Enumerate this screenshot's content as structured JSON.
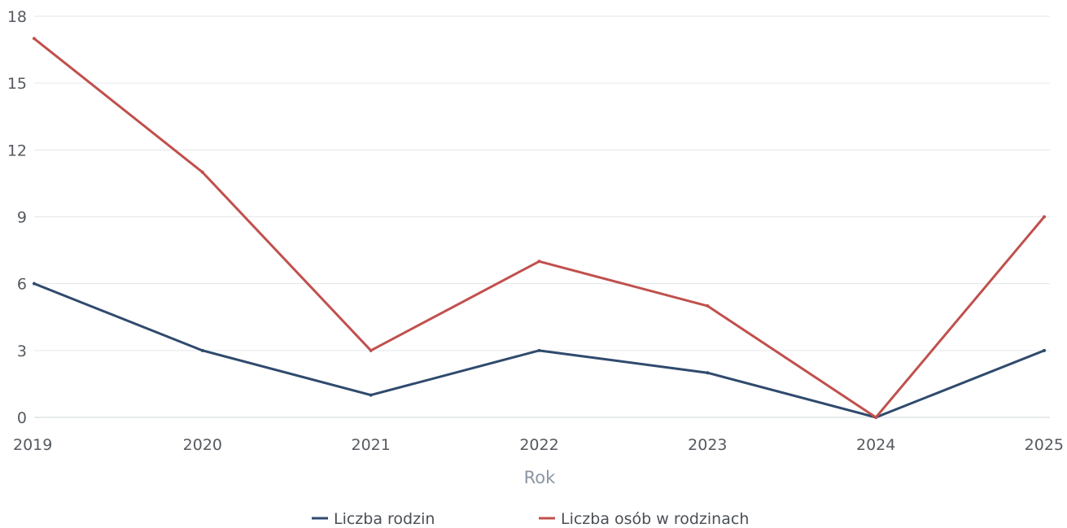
{
  "chart_data": {
    "type": "line",
    "x": [
      "2019",
      "2020",
      "2021",
      "2022",
      "2023",
      "2024",
      "2025"
    ],
    "series": [
      {
        "name": "Liczba rodzin",
        "color": "#2f4a6d",
        "values": [
          6,
          3,
          1,
          3,
          2,
          0,
          3
        ]
      },
      {
        "name": "Liczba osób w rodzinach",
        "color": "#c0504d",
        "values": [
          17,
          11,
          3,
          7,
          5,
          0,
          9
        ]
      }
    ],
    "xlabel": "Rok",
    "ylabel": "",
    "ylim": [
      0,
      18
    ],
    "yticks": [
      "0",
      "3",
      "6",
      "9",
      "12",
      "15",
      "18"
    ],
    "grid": true,
    "legend_position": "bottom-center"
  }
}
